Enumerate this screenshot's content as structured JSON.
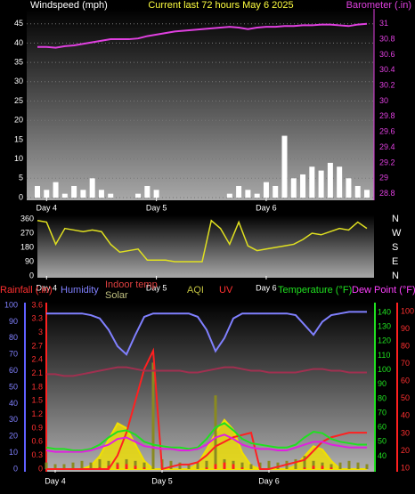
{
  "chart_data": [
    {
      "type": "combo",
      "title": "Current last 72 hours May 6 2025",
      "y_label": "Windspeed (mph)",
      "y2_label": "Barometer (.in)",
      "x": [
        0,
        2,
        4,
        6,
        8,
        10,
        12,
        14,
        16,
        18,
        20,
        22,
        24,
        26,
        28,
        30,
        32,
        34,
        36,
        38,
        40,
        42,
        44,
        46,
        48,
        50,
        52,
        54,
        56,
        58,
        60,
        62,
        64,
        66,
        68,
        70,
        72
      ],
      "xlim": [
        0,
        72
      ],
      "xticks": [
        {
          "value": 2,
          "label": "Day 4"
        },
        {
          "value": 26,
          "label": "Day 5"
        },
        {
          "value": 50,
          "label": "Day 6"
        }
      ],
      "ylim": [
        0,
        50
      ],
      "yticks": [
        0,
        5,
        10,
        15,
        20,
        25,
        30,
        35,
        40,
        45
      ],
      "y2lim": [
        28.75,
        31.25
      ],
      "y2ticks": [
        28.8,
        29,
        29.2,
        29.4,
        29.6,
        29.8,
        30,
        30.2,
        30.4,
        30.6,
        30.8,
        31
      ],
      "grid": true,
      "series": [
        {
          "kind": "bar",
          "color": "#ffffff",
          "values": [
            3,
            2,
            4,
            1,
            3,
            2,
            5,
            2,
            1,
            0,
            0,
            1,
            3,
            2,
            0,
            0,
            0,
            0,
            0,
            0,
            0,
            1,
            3,
            2,
            1,
            4,
            3,
            16,
            5,
            6,
            8,
            7,
            9,
            8,
            5,
            3,
            2
          ]
        },
        {
          "kind": "line",
          "axis": "y2",
          "color": "#e040e0",
          "values": [
            30.7,
            30.7,
            30.69,
            30.71,
            30.72,
            30.74,
            30.76,
            30.78,
            30.8,
            30.8,
            30.8,
            30.81,
            30.84,
            30.86,
            30.88,
            30.9,
            30.91,
            30.92,
            30.93,
            30.94,
            30.95,
            30.96,
            30.95,
            30.93,
            30.95,
            30.96,
            30.96,
            30.97,
            30.97,
            30.98,
            30.98,
            30.99,
            30.99,
            30.98,
            30.97,
            30.99,
            31
          ]
        }
      ]
    },
    {
      "type": "line",
      "x": [
        0,
        2,
        4,
        6,
        8,
        10,
        12,
        14,
        16,
        18,
        20,
        22,
        24,
        26,
        28,
        30,
        32,
        34,
        36,
        38,
        40,
        42,
        44,
        46,
        48,
        50,
        52,
        54,
        56,
        58,
        60,
        62,
        64,
        66,
        68,
        70,
        72
      ],
      "xlim": [
        0,
        72
      ],
      "xticks": [
        {
          "value": 2,
          "label": "Day 4"
        },
        {
          "value": 26,
          "label": "Day 5"
        },
        {
          "value": 50,
          "label": "Day 6"
        }
      ],
      "ylim": [
        0,
        360
      ],
      "yticks": [
        0,
        90,
        180,
        270,
        360
      ],
      "compass": [
        "N",
        "E",
        "S",
        "W",
        "N"
      ],
      "series": [
        {
          "kind": "line",
          "color": "#e0e020",
          "values": [
            350,
            340,
            200,
            300,
            290,
            280,
            290,
            280,
            200,
            150,
            160,
            170,
            100,
            100,
            100,
            90,
            90,
            90,
            90,
            350,
            300,
            200,
            340,
            190,
            160,
            170,
            180,
            190,
            200,
            230,
            270,
            260,
            280,
            300,
            290,
            340,
            300
          ]
        }
      ]
    },
    {
      "type": "multi",
      "x": [
        0,
        2,
        4,
        6,
        8,
        10,
        12,
        14,
        16,
        18,
        20,
        22,
        24,
        26,
        28,
        30,
        32,
        34,
        36,
        38,
        40,
        42,
        44,
        46,
        48,
        50,
        52,
        54,
        56,
        58,
        60,
        62,
        64,
        66,
        68,
        70,
        72
      ],
      "xlim": [
        0,
        72
      ],
      "xticks": [
        {
          "value": 2,
          "label": "Day 4"
        },
        {
          "value": 26,
          "label": "Day 5"
        },
        {
          "value": 50,
          "label": "Day 6"
        }
      ],
      "ylim": [
        0,
        100
      ],
      "yticks": [
        0,
        10,
        20,
        30,
        40,
        50,
        60,
        70,
        80,
        90,
        100
      ],
      "y2lim": [
        31,
        145
      ],
      "y2ticks": [
        40,
        50,
        60,
        70,
        80,
        90,
        100,
        110,
        120,
        130,
        140
      ],
      "y3lim": [
        9.5,
        103.6
      ],
      "y3ticks": [
        10,
        20,
        30,
        40,
        50,
        60,
        70,
        80,
        90,
        100
      ],
      "y4lim": [
        0,
        3.6
      ],
      "y4ticks": [
        0,
        0.3,
        0.6,
        0.9,
        1.2,
        1.5,
        1.8,
        2.1,
        2.4,
        2.7,
        3,
        3.3,
        3.6
      ],
      "series": [
        {
          "name": "Rainfall (.in)",
          "kind": "line",
          "axis": "y4",
          "color": "#ff2020",
          "values": [
            0,
            0,
            0,
            0,
            0,
            0,
            0,
            0,
            0.3,
            0.8,
            1.5,
            2.2,
            2.6,
            0,
            0.05,
            0.1,
            0.1,
            0.15,
            0.3,
            0.5,
            0.6,
            0.7,
            0.75,
            0.8,
            0,
            0,
            0.05,
            0.1,
            0.15,
            0.2,
            0.4,
            0.6,
            0.7,
            0.75,
            0.8,
            0.8,
            0.8
          ]
        },
        {
          "name": "Humidity",
          "kind": "line",
          "axis": "y",
          "color": "#8080ff",
          "values": [
            95,
            95,
            95,
            95,
            95,
            94,
            92,
            85,
            75,
            70,
            82,
            93,
            95,
            95,
            95,
            95,
            95,
            93,
            85,
            72,
            80,
            92,
            95,
            95,
            95,
            95,
            95,
            95,
            94,
            88,
            82,
            90,
            94,
            95,
            96,
            96,
            96
          ]
        },
        {
          "name": "Indoor temp",
          "kind": "line",
          "axis": "y3",
          "color": "#a03050",
          "values": [
            64,
            64,
            63,
            63,
            64,
            65,
            66,
            67,
            68,
            68,
            67,
            66,
            66,
            66,
            66,
            66,
            65,
            65,
            66,
            67,
            68,
            68,
            67,
            66,
            66,
            65,
            65,
            65,
            65,
            66,
            67,
            67,
            66,
            66,
            65,
            65,
            65
          ]
        },
        {
          "name": "Solar",
          "kind": "area",
          "axis": "y",
          "color": "#f0e000",
          "values": [
            0,
            0,
            0,
            0,
            0,
            2,
            8,
            18,
            28,
            25,
            15,
            5,
            0,
            0,
            0,
            0,
            0,
            3,
            12,
            22,
            30,
            24,
            10,
            2,
            0,
            0,
            0,
            0,
            2,
            8,
            14,
            12,
            5,
            0,
            0,
            0,
            0
          ]
        },
        {
          "name": "AQI",
          "kind": "bar",
          "axis": "y",
          "color": "#8a8a20",
          "values": [
            4,
            3,
            3,
            4,
            5,
            4,
            6,
            5,
            4,
            6,
            5,
            4,
            65,
            6,
            5,
            4,
            3,
            4,
            5,
            45,
            6,
            5,
            4,
            3,
            4,
            5,
            4,
            5,
            6,
            8,
            5,
            4,
            3,
            4,
            5,
            4,
            3
          ]
        },
        {
          "name": "UV",
          "kind": "bar",
          "axis": "y",
          "color": "#ff2020",
          "values": [
            0,
            0,
            0,
            0,
            0,
            0,
            1,
            2,
            3,
            3,
            2,
            1,
            0,
            0,
            0,
            0,
            0,
            0,
            1,
            3,
            4,
            3,
            1,
            0,
            0,
            0,
            0,
            0,
            0,
            1,
            2,
            2,
            1,
            0,
            0,
            0,
            0
          ]
        },
        {
          "name": "Temperature (°F)",
          "kind": "line",
          "axis": "y2",
          "color": "#20e020",
          "values": [
            46,
            45,
            45,
            44,
            44,
            45,
            48,
            53,
            57,
            58,
            55,
            50,
            48,
            47,
            46,
            46,
            45,
            46,
            52,
            60,
            63,
            58,
            52,
            49,
            48,
            47,
            46,
            46,
            48,
            53,
            57,
            56,
            52,
            50,
            49,
            48,
            48
          ]
        },
        {
          "name": "Dew Point (°F)",
          "kind": "line",
          "axis": "y2",
          "color": "#e020e0",
          "values": [
            44,
            43,
            43,
            43,
            43,
            44,
            46,
            48,
            52,
            53,
            50,
            47,
            46,
            45,
            45,
            44,
            44,
            45,
            48,
            53,
            55,
            52,
            48,
            46,
            45,
            45,
            44,
            44,
            46,
            48,
            50,
            50,
            48,
            47,
            46,
            46,
            46
          ]
        }
      ]
    }
  ]
}
